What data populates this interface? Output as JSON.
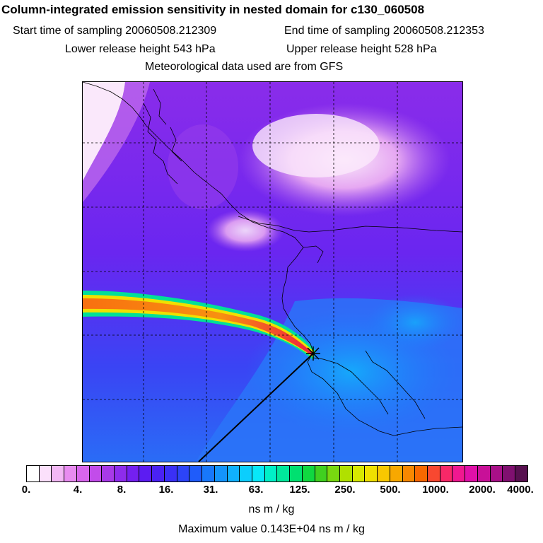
{
  "header": {
    "title": "Column-integrated emission sensitivity in nested domain for c130_060508",
    "start_label": "Start time of sampling 20060508.212309",
    "end_label": "End time of sampling 20060508.212353",
    "lower_label": "Lower release height  543 hPa",
    "upper_label": "Upper release height  528 hPa",
    "met_label": "Meteorological data used are from GFS"
  },
  "colorbar": {
    "ticks": [
      "0.",
      "4.",
      "8.",
      "16.",
      "31.",
      "63.",
      "125.",
      "250.",
      "500.",
      "1000.",
      "2000.",
      "4000."
    ],
    "colors": [
      "#ffffff",
      "#fbe0fb",
      "#f3b8f5",
      "#e88cf0",
      "#d866ec",
      "#c24cea",
      "#a83ae8",
      "#8e2cec",
      "#7420f0",
      "#5c1cf2",
      "#4a22f4",
      "#3a30f6",
      "#2c44f8",
      "#1f5cfa",
      "#1878fb",
      "#1494fc",
      "#10b0fd",
      "#0ccefd",
      "#08e8f8",
      "#00f0c8",
      "#00e89c",
      "#00e070",
      "#10d840",
      "#40d020",
      "#78d810",
      "#b0e000",
      "#d8e800",
      "#f0e000",
      "#f8c800",
      "#f8a800",
      "#f88800",
      "#f86800",
      "#f84830",
      "#f82868",
      "#f01890",
      "#e010a8",
      "#c81098",
      "#a81088",
      "#801070",
      "#581050"
    ],
    "units": "ns m / kg",
    "max_value_label": "Maximum value  0.143E+04 ns m / kg"
  }
}
